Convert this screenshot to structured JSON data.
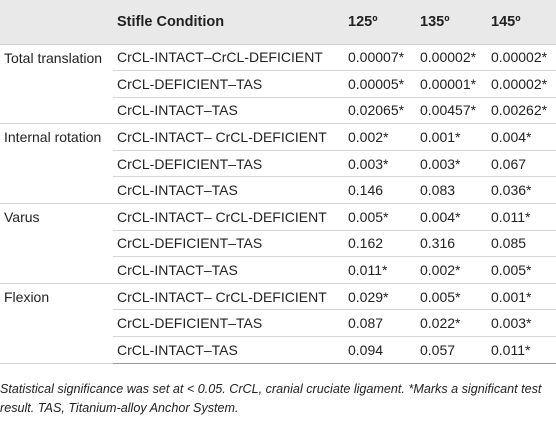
{
  "table": {
    "headers": [
      "",
      "Stifle Condition",
      "125º",
      "135º",
      "145º"
    ],
    "rows": [
      {
        "param": "Total translation",
        "condition": "CrCL-INTACT–CrCL-DEFICIENT",
        "v125": "0.00007*",
        "v135": "0.00002*",
        "v145": "0.00002*"
      },
      {
        "param": "",
        "condition": "CrCL-DEFICIENT–TAS",
        "v125": "0.00005*",
        "v135": "0.00001*",
        "v145": "0.00002*"
      },
      {
        "param": "",
        "condition": "CrCL-INTACT–TAS",
        "v125": "0.02065*",
        "v135": "0.00457*",
        "v145": "0.00262*"
      },
      {
        "param": "Internal rotation",
        "condition": "CrCL-INTACT– CrCL-DEFICIENT",
        "v125": "0.002*",
        "v135": "0.001*",
        "v145": "0.004*"
      },
      {
        "param": "",
        "condition": "CrCL-DEFICIENT–TAS",
        "v125": "0.003*",
        "v135": "0.003*",
        "v145": "0.067"
      },
      {
        "param": "",
        "condition": "CrCL-INTACT–TAS",
        "v125": "0.146",
        "v135": "0.083",
        "v145": "0.036*"
      },
      {
        "param": "Varus",
        "condition": "CrCL-INTACT– CrCL-DEFICIENT",
        "v125": "0.005*",
        "v135": "0.004*",
        "v145": "0.011*"
      },
      {
        "param": "",
        "condition": "CrCL-DEFICIENT–TAS",
        "v125": "0.162",
        "v135": "0.316",
        "v145": "0.085"
      },
      {
        "param": "",
        "condition": "CrCL-INTACT–TAS",
        "v125": "0.011*",
        "v135": "0.002*",
        "v145": "0.005*"
      },
      {
        "param": "Flexion",
        "condition": "CrCL-INTACT– CrCL-DEFICIENT",
        "v125": "0.029*",
        "v135": "0.005*",
        "v145": "0.001*"
      },
      {
        "param": "",
        "condition": "CrCL-DEFICIENT–TAS",
        "v125": "0.087",
        "v135": "0.022*",
        "v145": "0.003*"
      },
      {
        "param": "",
        "condition": "CrCL-INTACT–TAS",
        "v125": "0.094",
        "v135": "0.057",
        "v145": "0.011*"
      }
    ]
  },
  "footnote": "Statistical significance was set at < 0.05. CrCL, cranial cruciate ligament. *Marks a significant test result. TAS, Titanium-alloy Anchor System."
}
